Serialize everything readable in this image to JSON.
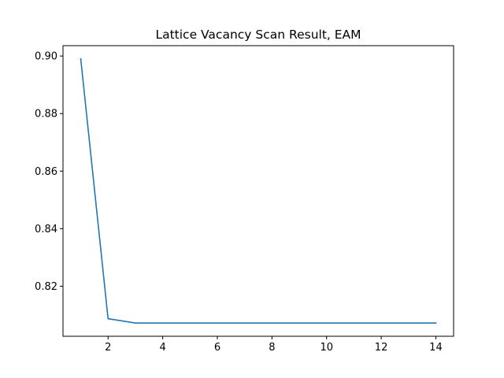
{
  "chart_data": {
    "type": "line",
    "title": "Lattice Vacancy Scan Result, EAM",
    "xlabel": "",
    "ylabel": "",
    "x": [
      1,
      2,
      3,
      4,
      5,
      6,
      7,
      8,
      9,
      10,
      11,
      12,
      13,
      14
    ],
    "series": [
      {
        "values": [
          0.899,
          0.8087,
          0.8072,
          0.8072,
          0.8072,
          0.8072,
          0.8072,
          0.8072,
          0.8072,
          0.8072,
          0.8072,
          0.8072,
          0.8072,
          0.8072
        ],
        "color": "#1f77b4"
      }
    ],
    "xlim": [
      0.35,
      14.65
    ],
    "ylim": [
      0.8026,
      0.9036
    ],
    "xticks": [
      2,
      4,
      6,
      8,
      10,
      12,
      14
    ],
    "xtick_labels": [
      "2",
      "4",
      "6",
      "8",
      "10",
      "12",
      "14"
    ],
    "yticks": [
      0.82,
      0.84,
      0.86,
      0.88,
      0.9
    ],
    "ytick_labels": [
      "0.82",
      "0.84",
      "0.86",
      "0.88",
      "0.90"
    ],
    "grid": false,
    "legend": "none"
  }
}
